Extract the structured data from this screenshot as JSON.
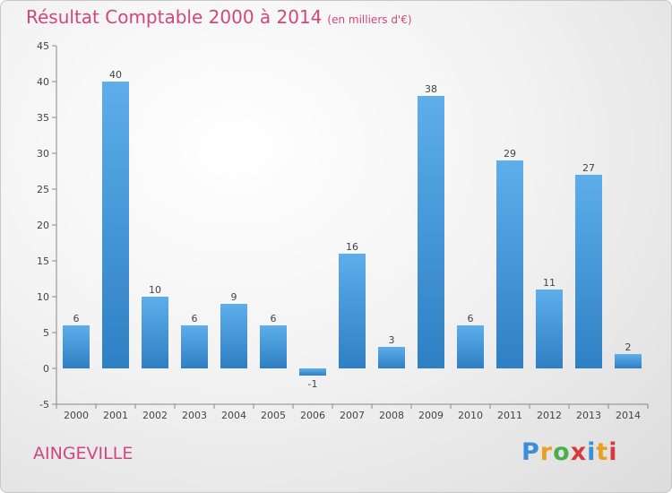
{
  "title": "Résultat Comptable 2000 à 2014",
  "subtitle": "(en milliers d'€)",
  "commune": "AINGEVILLE",
  "logo": {
    "letters": [
      "P",
      "r",
      "o",
      "x",
      "i",
      "t",
      "i"
    ],
    "colors": [
      "#3a8fd8",
      "#e8a020",
      "#4bb04b",
      "#d83a3a",
      "#3a8fd8",
      "#e8a020",
      "#d83a3a"
    ]
  },
  "colors": {
    "title": "#d0487a",
    "bar_light": "#5daeea",
    "bar_dark": "#2f7fc4",
    "axis": "#888888",
    "grid": "#d6d6d6"
  },
  "chart_data": {
    "type": "bar",
    "title": "Résultat Comptable 2000 à 2014",
    "xlabel": "",
    "ylabel": "",
    "ylim": [
      -5,
      45
    ],
    "yticks": [
      -5,
      0,
      5,
      10,
      15,
      20,
      25,
      30,
      35,
      40,
      45
    ],
    "categories": [
      "2000",
      "2001",
      "2002",
      "2003",
      "2004",
      "2005",
      "2006",
      "2007",
      "2008",
      "2009",
      "2010",
      "2011",
      "2012",
      "2013",
      "2014"
    ],
    "values": [
      6,
      40,
      10,
      6,
      9,
      6,
      -1,
      16,
      3,
      38,
      6,
      29,
      11,
      27,
      2
    ],
    "grid": false,
    "legend": "none"
  }
}
